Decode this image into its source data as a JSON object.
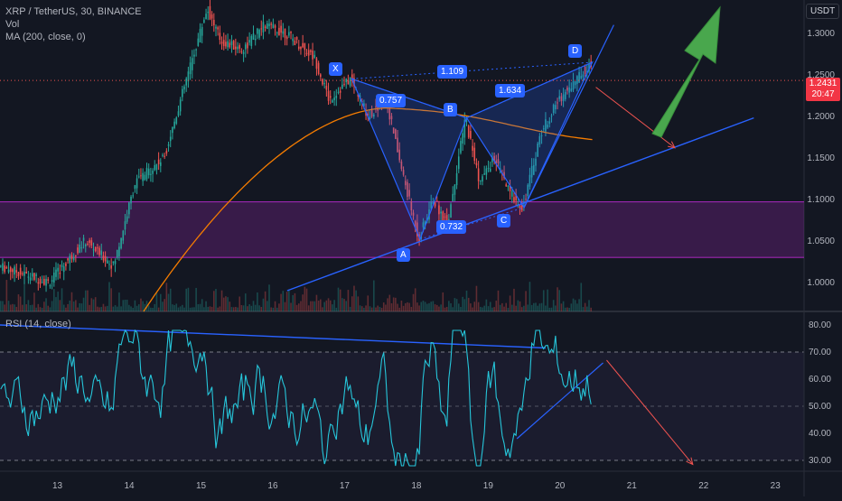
{
  "header": {
    "symbol_line": "XRP / TetherUS, 30, BINANCE",
    "vol_label": "Vol",
    "ma_label": "MA (200, close, 0)",
    "currency_badge": "USDT"
  },
  "price_axis": {
    "ticks": [
      "1.3000",
      "1.2500",
      "1.2000",
      "1.1500",
      "1.1000",
      "1.0500",
      "1.0000"
    ],
    "last_price": "1.2431",
    "countdown": "20:47"
  },
  "rsi": {
    "label": "RSI (14, close)",
    "ticks": [
      "80.00",
      "70.00",
      "60.00",
      "50.00",
      "40.00",
      "30.00"
    ]
  },
  "time_axis": {
    "ticks": [
      "13",
      "14",
      "15",
      "16",
      "17",
      "18",
      "19",
      "20",
      "21",
      "22",
      "23"
    ]
  },
  "pattern": {
    "points": [
      "X",
      "A",
      "B",
      "C",
      "D"
    ],
    "ratios": {
      "xb": "0.757",
      "ac": "0.732",
      "bd": "1.634",
      "xd": "1.109"
    }
  },
  "colors": {
    "background": "#131722",
    "up_candle": "#26a69a",
    "down_candle": "#ef5350",
    "pattern_fill": "#2962ff",
    "ma_line": "#f57c00",
    "zone": "#9c27b0",
    "rsi_line": "#26c6da",
    "trend_line": "#2962ff",
    "arrow_green": "#4caf50",
    "arrow_red": "#ef5350"
  },
  "chart_data": {
    "type": "candlestick",
    "x_range_days": [
      12.2,
      23.4
    ],
    "ylim": [
      0.965,
      1.34
    ],
    "rsi_ylim": [
      26,
      85
    ],
    "pattern_points": {
      "X": [
        17.1,
        1.245
      ],
      "A": [
        18.05,
        1.052
      ],
      "B": [
        18.7,
        1.198
      ],
      "C": [
        19.5,
        1.09
      ],
      "D": [
        20.45,
        1.265
      ]
    },
    "ma200_end": 1.175,
    "zone": [
      1.03,
      1.097
    ]
  }
}
